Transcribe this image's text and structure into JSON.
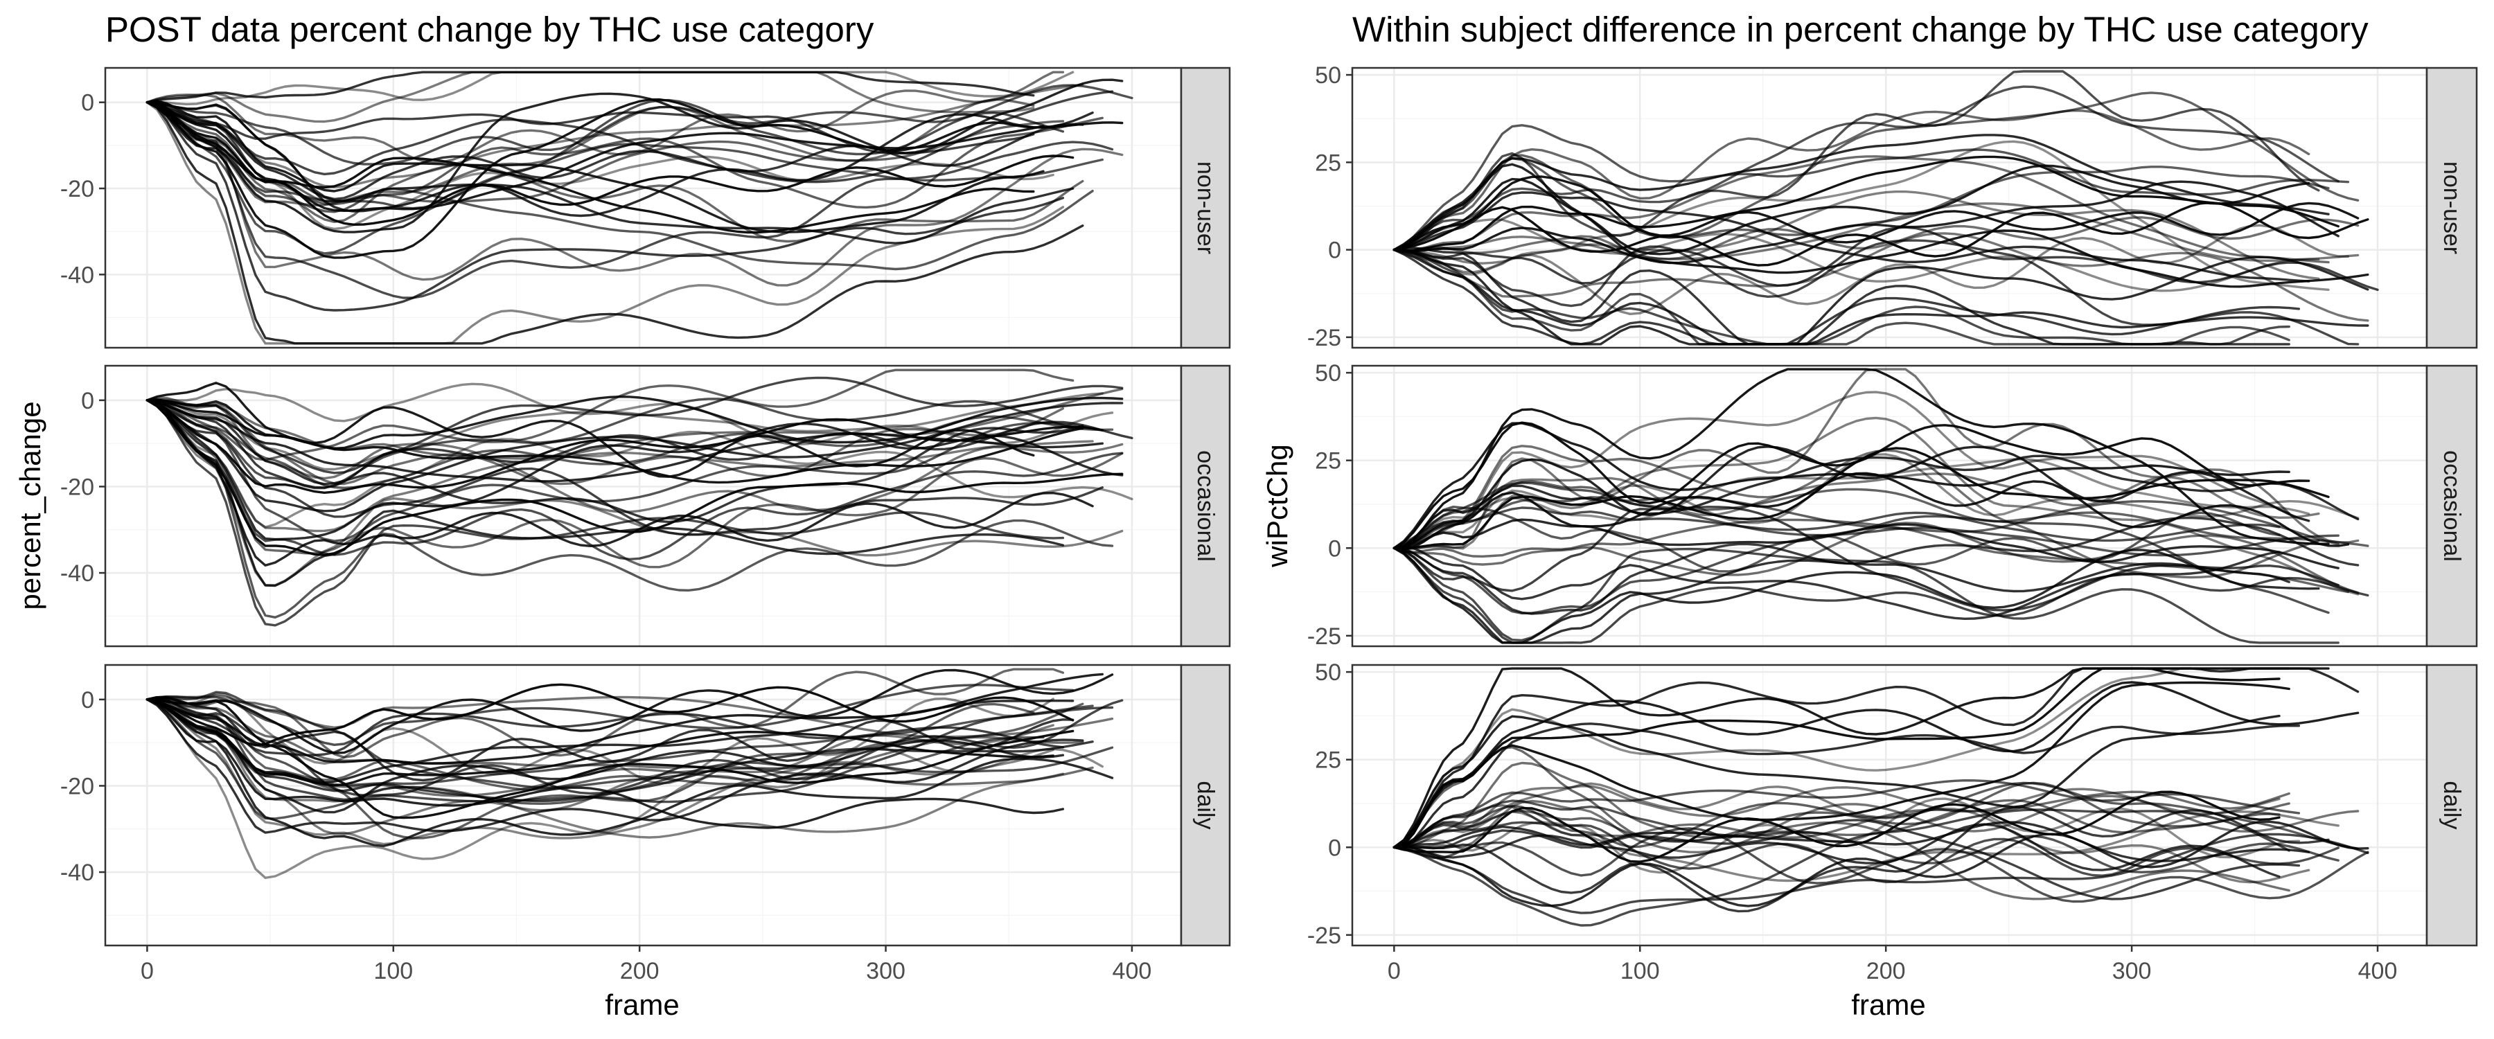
{
  "chart_data": [
    {
      "type": "line",
      "title": "POST data percent change by THC use category",
      "xlabel": "frame",
      "ylabel": "percent_change",
      "xlim": [
        -17,
        420
      ],
      "ylim": [
        -57,
        8
      ],
      "xticks": [
        0,
        100,
        200,
        300,
        400
      ],
      "yticks": [
        -40,
        -20,
        0
      ],
      "facets": [
        "non-user",
        "occasional",
        "daily"
      ],
      "grid": true,
      "legend": "none",
      "line_color": "#000000",
      "series_per_facet": 30,
      "facet_data": [
        {
          "facet": "non-user",
          "x": [
            0,
            25,
            50,
            75,
            100,
            150,
            200,
            250,
            300,
            350,
            400
          ],
          "representative_series": [
            [
              0,
              -5,
              -20,
              -28,
              -25,
              -20,
              -15,
              -12,
              -10,
              -8,
              -5
            ],
            [
              0,
              -15,
              -50,
              -53,
              -53,
              -45,
              -42,
              -43,
              -35,
              -25,
              -20
            ],
            [
              0,
              -10,
              -25,
              -30,
              -28,
              -10,
              -5,
              -15,
              -20,
              -10,
              -5
            ],
            [
              0,
              -3,
              -12,
              -18,
              -15,
              -10,
              -8,
              -5,
              -5,
              -3,
              -2
            ],
            [
              0,
              -8,
              -22,
              -26,
              -20,
              -22,
              -25,
              -30,
              -28,
              -20,
              -12
            ],
            [
              0,
              -2,
              -8,
              -10,
              -8,
              -2,
              5,
              3,
              -5,
              -2,
              2
            ]
          ]
        },
        {
          "facet": "occasional",
          "x": [
            0,
            25,
            50,
            75,
            100,
            150,
            200,
            250,
            300,
            350,
            400
          ],
          "representative_series": [
            [
              0,
              -12,
              -40,
              -35,
              -25,
              -25,
              -26,
              -26,
              -26,
              -27,
              -28
            ],
            [
              0,
              -5,
              -18,
              -20,
              -15,
              -12,
              -10,
              -10,
              -8,
              -6,
              -5
            ],
            [
              0,
              -8,
              -25,
              -30,
              -25,
              -22,
              -30,
              -22,
              -18,
              -12,
              -10
            ],
            [
              0,
              -3,
              -10,
              -12,
              -8,
              -6,
              -5,
              -6,
              -5,
              -4,
              -4
            ],
            [
              0,
              -6,
              -15,
              -20,
              -18,
              -15,
              -14,
              -12,
              -10,
              -8,
              -6
            ]
          ]
        },
        {
          "facet": "daily",
          "x": [
            0,
            25,
            50,
            75,
            100,
            150,
            200,
            250,
            300,
            350,
            400
          ],
          "representative_series": [
            [
              0,
              -10,
              -27,
              -26,
              -23,
              -25,
              -24,
              -20,
              -18,
              -15,
              -12
            ],
            [
              0,
              -5,
              -15,
              -20,
              -18,
              -15,
              -13,
              -10,
              -8,
              -6,
              -4
            ],
            [
              0,
              -3,
              -8,
              -10,
              -3,
              -2,
              -2,
              -2,
              -2,
              -1,
              -1
            ],
            [
              0,
              -8,
              -22,
              -25,
              -20,
              -18,
              -16,
              -14,
              -12,
              -10,
              -8
            ],
            [
              0,
              -6,
              -18,
              -22,
              -28,
              -25,
              -22,
              -20,
              -15,
              -12,
              -10
            ]
          ]
        }
      ]
    },
    {
      "type": "line",
      "title": "Within subject difference in percent change by THC use category",
      "xlabel": "frame",
      "ylabel": "wiPctChg",
      "xlim": [
        -17,
        420
      ],
      "ylim": [
        -28,
        52
      ],
      "xticks": [
        0,
        100,
        200,
        300,
        400
      ],
      "yticks": [
        -25,
        0,
        25,
        50
      ],
      "facets": [
        "non-user",
        "occasional",
        "daily"
      ],
      "grid": true,
      "legend": "none",
      "line_color": "#000000",
      "series_per_facet": 30,
      "facet_data": [
        {
          "facet": "non-user",
          "x": [
            0,
            25,
            50,
            75,
            100,
            150,
            200,
            250,
            300,
            350,
            400
          ],
          "representative_series": [
            [
              0,
              5,
              15,
              10,
              5,
              10,
              15,
              20,
              10,
              5,
              0
            ],
            [
              0,
              -5,
              -15,
              -20,
              -10,
              -25,
              -10,
              -15,
              -25,
              -22,
              -25
            ],
            [
              0,
              8,
              20,
              15,
              10,
              20,
              25,
              30,
              25,
              20,
              15
            ],
            [
              0,
              2,
              5,
              3,
              0,
              2,
              0,
              0,
              0,
              -2,
              -2
            ]
          ]
        },
        {
          "facet": "occasional",
          "x": [
            0,
            25,
            50,
            75,
            100,
            150,
            200,
            250,
            300,
            350,
            400
          ],
          "representative_series": [
            [
              0,
              15,
              30,
              25,
              20,
              30,
              30,
              25,
              15,
              10,
              2
            ],
            [
              0,
              -10,
              -20,
              -15,
              -5,
              0,
              -5,
              -10,
              -5,
              -10,
              -18
            ],
            [
              0,
              10,
              15,
              10,
              5,
              5,
              5,
              0,
              0,
              0,
              -3
            ],
            [
              0,
              5,
              25,
              20,
              25,
              20,
              35,
              15,
              10,
              5,
              0
            ]
          ]
        },
        {
          "facet": "daily",
          "x": [
            0,
            25,
            50,
            75,
            100,
            150,
            200,
            250,
            300,
            350,
            400
          ],
          "representative_series": [
            [
              0,
              20,
              35,
              35,
              33,
              30,
              28,
              25,
              45,
              45,
              43
            ],
            [
              0,
              -5,
              -8,
              -10,
              -5,
              -10,
              -5,
              0,
              -5,
              -3,
              -4
            ],
            [
              0,
              10,
              20,
              15,
              10,
              15,
              10,
              15,
              5,
              3,
              0
            ],
            [
              0,
              5,
              15,
              10,
              5,
              5,
              5,
              3,
              2,
              2,
              1
            ]
          ]
        }
      ]
    }
  ]
}
